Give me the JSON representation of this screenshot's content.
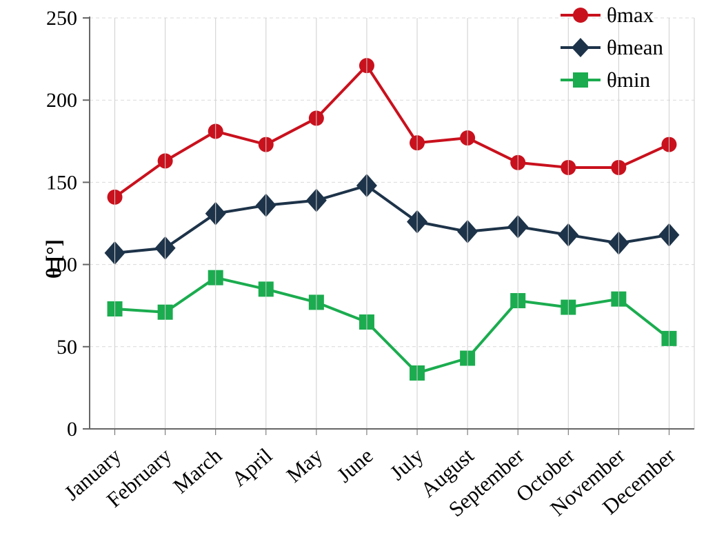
{
  "chart_data": {
    "type": "line",
    "title": "",
    "xlabel": "",
    "ylabel": "θ [°]",
    "categories": [
      "January",
      "February",
      "March",
      "April",
      "May",
      "June",
      "July",
      "August",
      "September",
      "October",
      "November",
      "December"
    ],
    "series": [
      {
        "name": "θmax",
        "marker": "circle",
        "color": "#C9111D",
        "values": [
          141,
          163,
          181,
          173,
          189,
          221,
          174,
          177,
          162,
          159,
          159,
          173
        ]
      },
      {
        "name": "θmean",
        "marker": "diamond",
        "color": "#1D3349",
        "values": [
          107,
          110,
          131,
          136,
          139,
          148,
          126,
          120,
          123,
          118,
          113,
          118
        ]
      },
      {
        "name": "θmin",
        "marker": "square",
        "color": "#1BAC4F",
        "values": [
          73,
          71,
          92,
          85,
          77,
          65,
          34,
          43,
          78,
          74,
          79,
          55
        ]
      }
    ],
    "ylim": [
      0,
      250
    ],
    "yticks": [
      0,
      50,
      100,
      150,
      200,
      250
    ],
    "legend_position": "top-right",
    "grid": {
      "horizontal": "dashed",
      "vertical": "solid"
    },
    "colors": {
      "grid": "#D9D9D9",
      "vgrid": "#CECECE",
      "axis": "#666666",
      "text": "#000000"
    }
  }
}
